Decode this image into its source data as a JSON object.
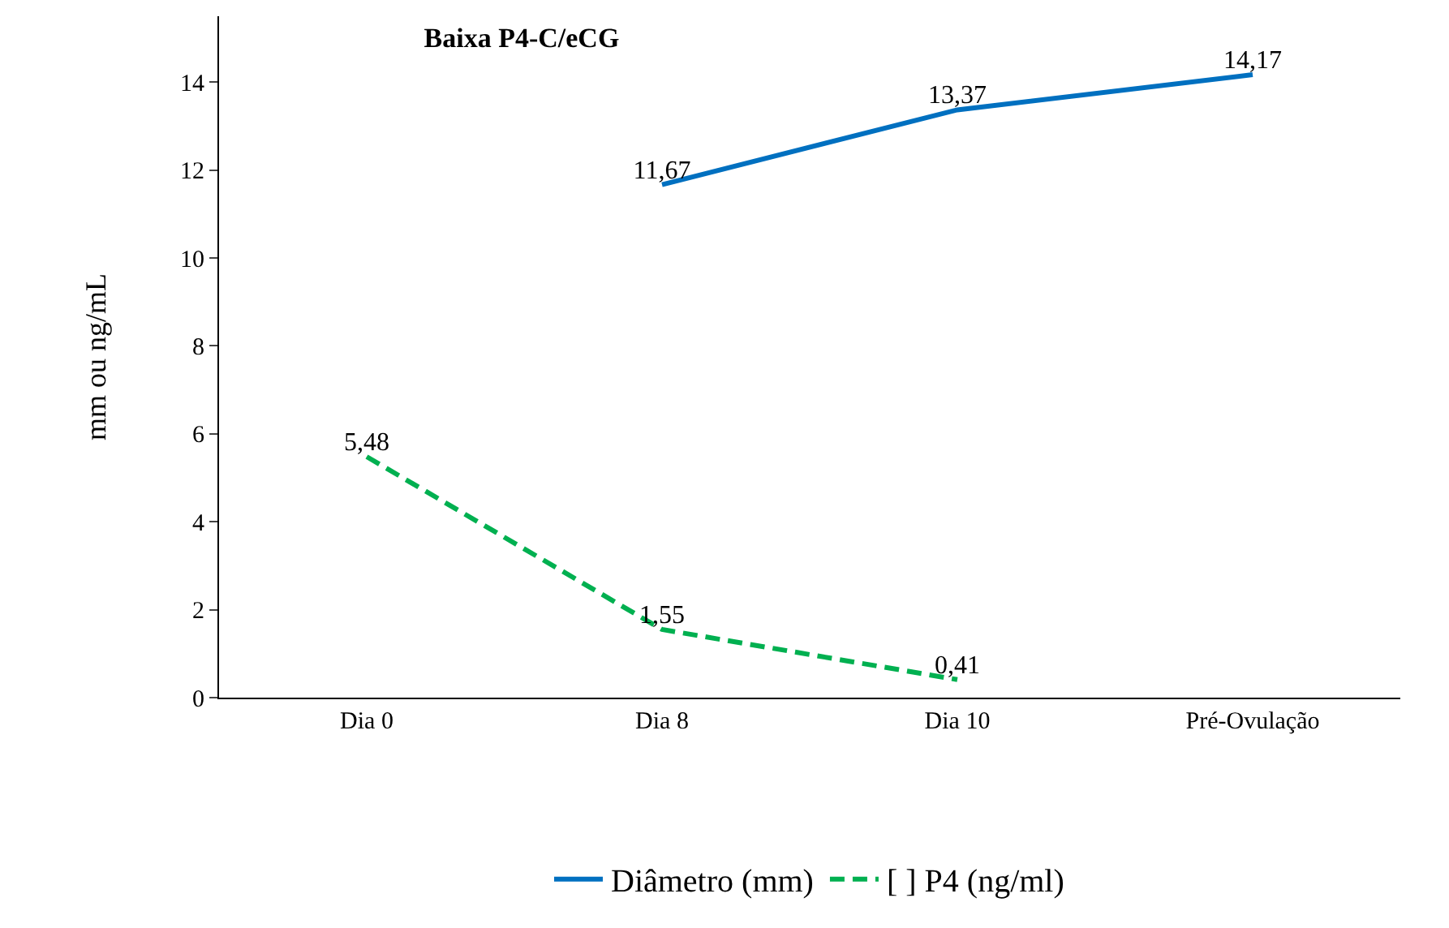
{
  "chart_data": {
    "type": "line",
    "title": "Baixa P4-C/eCG",
    "ylabel": "mm ou ng/mL",
    "categories": [
      "Dia 0",
      "Dia 8",
      "Dia 10",
      "Pré-Ovulação"
    ],
    "series": [
      {
        "name": "Diâmetro (mm)",
        "color": "#0070c0",
        "line_style": "solid",
        "values": [
          null,
          11.67,
          13.37,
          14.17
        ],
        "value_labels": [
          null,
          "11,67",
          "13,37",
          "14,17"
        ]
      },
      {
        "name": "[ ] P4 (ng/ml)",
        "color": "#00b050",
        "line_style": "dashed",
        "values": [
          5.48,
          1.55,
          0.41,
          null
        ],
        "value_labels": [
          "5,48",
          "1,55",
          "0,41",
          null
        ]
      }
    ],
    "ylim": [
      0,
      15.5
    ],
    "yticks": [
      0,
      2,
      4,
      6,
      8,
      10,
      12,
      14
    ],
    "legend": "bottom",
    "marker": "none"
  }
}
